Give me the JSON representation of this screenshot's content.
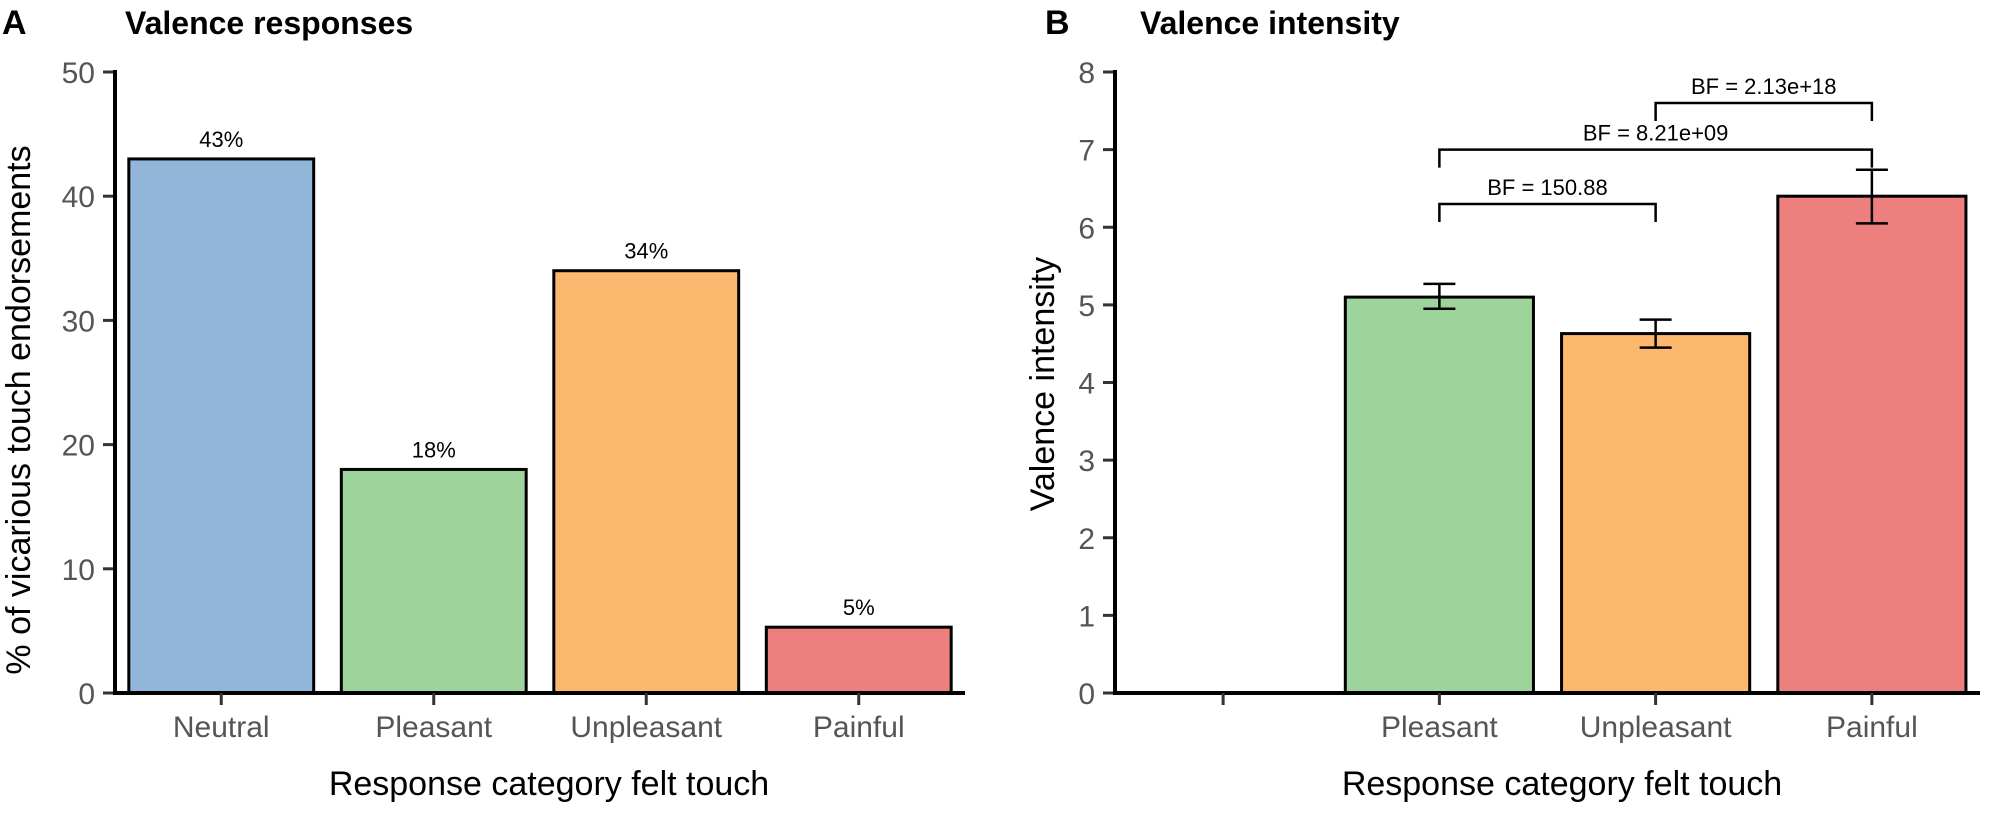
{
  "chart_data": [
    {
      "panel": "A",
      "type": "bar",
      "title": "Valence responses",
      "xlabel": "Response category felt touch",
      "ylabel": "% of vicarious touch endorsements",
      "ylim": [
        0,
        50
      ],
      "yticks": [
        0,
        10,
        20,
        30,
        40,
        50
      ],
      "categories": [
        "Neutral",
        "Pleasant",
        "Unpleasant",
        "Painful"
      ],
      "values": [
        43,
        18,
        34,
        5.3
      ],
      "data_labels": [
        "43%",
        "18%",
        "34%",
        "5%"
      ],
      "colors": [
        "#92b6d9",
        "#9ed49b",
        "#fdb86f",
        "#ee7f7f"
      ]
    },
    {
      "panel": "B",
      "type": "bar",
      "title": "Valence intensity",
      "xlabel": "Response category felt touch",
      "ylabel": "Valence intensity",
      "ylim": [
        0,
        8
      ],
      "yticks": [
        0,
        1,
        2,
        3,
        4,
        5,
        6,
        7,
        8
      ],
      "categories": [
        "",
        "Pleasant",
        "Unpleasant",
        "Painful"
      ],
      "values": [
        null,
        5.1,
        4.63,
        6.4
      ],
      "error_low": [
        null,
        4.95,
        4.45,
        6.05
      ],
      "error_high": [
        null,
        5.27,
        4.81,
        6.74
      ],
      "colors": [
        "#92b6d9",
        "#9ed49b",
        "#fdb86f",
        "#ee7f7f"
      ],
      "comparisons": [
        {
          "from": 1,
          "to": 2,
          "label": "BF = 150.88",
          "y": 6.3
        },
        {
          "from": 1,
          "to": 3,
          "label": "BF = 8.21e+09",
          "y": 7.0
        },
        {
          "from": 2,
          "to": 3,
          "label": "BF = 2.13e+18",
          "y": 7.6
        }
      ]
    }
  ]
}
